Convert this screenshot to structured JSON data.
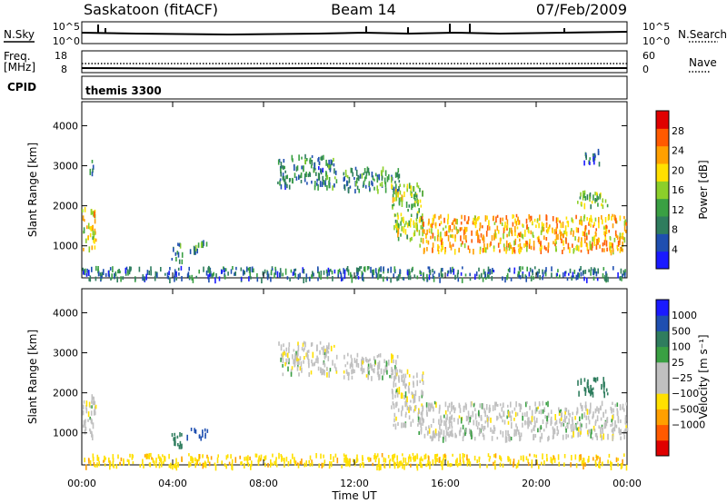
{
  "header": {
    "station": "Saskatoon (fitACF)",
    "beam": "Beam 14",
    "date": "07/Feb/2009"
  },
  "strips": {
    "nsky_label": "N.Sky",
    "nsearch_label": "N.Search",
    "freq_label_1": "Freq.",
    "freq_label_2": "[MHz]",
    "nave_label": "Nave",
    "cpid_label": "CPID",
    "cpid_value": "themis 3300",
    "noise_ticks": [
      "10^5",
      "10^0"
    ],
    "noise_right_ticks": [
      "10^5",
      "10^0"
    ],
    "freq_ticks": [
      "18",
      "8"
    ],
    "nave_ticks": [
      "60",
      "0"
    ]
  },
  "colors": {
    "power": [
      "#1a1aff",
      "#1f4fb0",
      "#2f7d5e",
      "#3aa043",
      "#8ccf2a",
      "#ffe000",
      "#ffa000",
      "#ff5a00",
      "#e00000"
    ],
    "velocity": [
      "#e00000",
      "#ff5a00",
      "#ffa000",
      "#ffe000",
      "#c0c0c0",
      "#c0c0c0",
      "#3aa043",
      "#2f7d5e",
      "#1f4fb0",
      "#1a1aff"
    ],
    "ground_scatter": "#b8b8b8"
  },
  "chart_data": [
    {
      "type": "heatmap",
      "name": "power",
      "xlabel": "",
      "ylabel": "Slant Range [km]",
      "ylim": [
        200,
        4600
      ],
      "xlim": [
        0,
        24
      ],
      "yticks": [
        "1000",
        "2000",
        "3000",
        "4000"
      ],
      "colorbar_label": "Power [dB]",
      "colorbar_ticks": [
        "4",
        "8",
        "12",
        "16",
        "20",
        "24",
        "28"
      ],
      "colorbar_range": [
        0,
        32
      ],
      "regions": [
        {
          "t0": 0.0,
          "t1": 0.6,
          "r0": 950,
          "r1": 2000,
          "level": 20
        },
        {
          "t0": 0.3,
          "t1": 0.5,
          "r0": 2800,
          "r1": 3200,
          "level": 6
        },
        {
          "t0": 3.9,
          "t1": 4.4,
          "r0": 650,
          "r1": 1100,
          "level": 10
        },
        {
          "t0": 4.6,
          "t1": 5.5,
          "r0": 900,
          "r1": 1150,
          "level": 9
        },
        {
          "t0": 8.6,
          "t1": 11.2,
          "r0": 2500,
          "r1": 3300,
          "level": 9
        },
        {
          "t0": 11.5,
          "t1": 14.0,
          "r0": 2400,
          "r1": 3000,
          "level": 10
        },
        {
          "t0": 13.6,
          "t1": 15.0,
          "r0": 1200,
          "r1": 2600,
          "level": 16
        },
        {
          "t0": 14.8,
          "t1": 24.0,
          "r0": 900,
          "r1": 1800,
          "level": 22
        },
        {
          "t0": 21.8,
          "t1": 23.2,
          "r0": 2000,
          "r1": 2400,
          "level": 14
        },
        {
          "t0": 22.0,
          "t1": 22.8,
          "r0": 3100,
          "r1": 3450,
          "level": 6
        },
        {
          "t0": 0.0,
          "t1": 24.0,
          "r0": 200,
          "r1": 500,
          "level": 8
        }
      ]
    },
    {
      "type": "heatmap",
      "name": "velocity",
      "xlabel": "Time UT",
      "ylabel": "Slant Range [km]",
      "ylim": [
        200,
        4600
      ],
      "xlim": [
        0,
        24
      ],
      "xticks": [
        "00:00",
        "04:00",
        "08:00",
        "12:00",
        "16:00",
        "20:00",
        "00:00"
      ],
      "yticks": [
        "1000",
        "2000",
        "3000",
        "4000"
      ],
      "colorbar_label": "Velocity [m s⁻¹]",
      "colorbar_ticks": [
        "1000",
        "500",
        "100",
        "25",
        "−25",
        "−100",
        "−500",
        "−1000"
      ],
      "regions": [
        {
          "t0": 0.0,
          "t1": 0.6,
          "r0": 950,
          "r1": 2000,
          "value": 0
        },
        {
          "t0": 3.9,
          "t1": 4.4,
          "r0": 650,
          "r1": 1100,
          "value": 200
        },
        {
          "t0": 4.6,
          "t1": 5.5,
          "r0": 900,
          "r1": 1150,
          "value": 700
        },
        {
          "t0": 8.6,
          "t1": 11.2,
          "r0": 2500,
          "r1": 3300,
          "value": 0
        },
        {
          "t0": 11.5,
          "t1": 14.0,
          "r0": 2400,
          "r1": 3000,
          "value": 0
        },
        {
          "t0": 13.6,
          "t1": 15.0,
          "r0": 1200,
          "r1": 2600,
          "value": 0
        },
        {
          "t0": 14.8,
          "t1": 24.0,
          "r0": 900,
          "r1": 1800,
          "value": 0
        },
        {
          "t0": 21.8,
          "t1": 23.2,
          "r0": 2000,
          "r1": 2400,
          "value": 150
        },
        {
          "t0": 0.0,
          "t1": 24.0,
          "r0": 200,
          "r1": 500,
          "value": -80
        }
      ]
    }
  ]
}
